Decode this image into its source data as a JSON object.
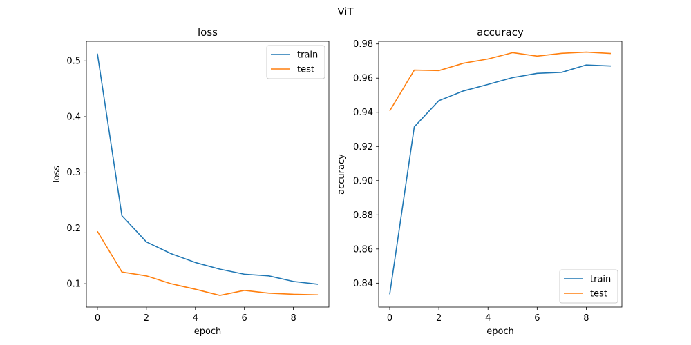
{
  "figure": {
    "suptitle": "ViT"
  },
  "chart_data": [
    {
      "type": "line",
      "title": "loss",
      "xlabel": "epoch",
      "ylabel": "loss",
      "x": [
        0,
        1,
        2,
        3,
        4,
        5,
        6,
        7,
        8,
        9
      ],
      "xlim": [
        -0.45,
        9.45
      ],
      "ylim": [
        0.058,
        0.535
      ],
      "xticks": [
        0,
        2,
        4,
        6,
        8
      ],
      "yticks": [
        0.1,
        0.2,
        0.3,
        0.4,
        0.5
      ],
      "ytick_labels": [
        "0.1",
        "0.2",
        "0.3",
        "0.4",
        "0.5"
      ],
      "legend_position": "upper right",
      "grid": false,
      "series": [
        {
          "name": "train",
          "color": "#1f77b4",
          "values": [
            0.513,
            0.222,
            0.175,
            0.154,
            0.138,
            0.126,
            0.117,
            0.114,
            0.104,
            0.099
          ]
        },
        {
          "name": "test",
          "color": "#ff7f0e",
          "values": [
            0.194,
            0.121,
            0.114,
            0.1,
            0.09,
            0.079,
            0.088,
            0.083,
            0.081,
            0.08
          ]
        }
      ]
    },
    {
      "type": "line",
      "title": "accuracy",
      "xlabel": "epoch",
      "ylabel": "accuracy",
      "x": [
        0,
        1,
        2,
        3,
        4,
        5,
        6,
        7,
        8,
        9
      ],
      "xlim": [
        -0.45,
        9.45
      ],
      "ylim": [
        0.826,
        0.9815
      ],
      "xticks": [
        0,
        2,
        4,
        6,
        8
      ],
      "yticks": [
        0.84,
        0.86,
        0.88,
        0.9,
        0.92,
        0.94,
        0.96,
        0.98
      ],
      "ytick_labels": [
        "0.84",
        "0.86",
        "0.88",
        "0.90",
        "0.92",
        "0.94",
        "0.96",
        "0.98"
      ],
      "legend_position": "lower right",
      "grid": false,
      "series": [
        {
          "name": "train",
          "color": "#1f77b4",
          "values": [
            0.8335,
            0.9315,
            0.9468,
            0.9525,
            0.9563,
            0.9603,
            0.9628,
            0.9634,
            0.9677,
            0.9671
          ]
        },
        {
          "name": "test",
          "color": "#ff7f0e",
          "values": [
            0.9408,
            0.9647,
            0.9644,
            0.9687,
            0.9712,
            0.9749,
            0.9729,
            0.9745,
            0.9752,
            0.9744
          ]
        }
      ]
    }
  ]
}
